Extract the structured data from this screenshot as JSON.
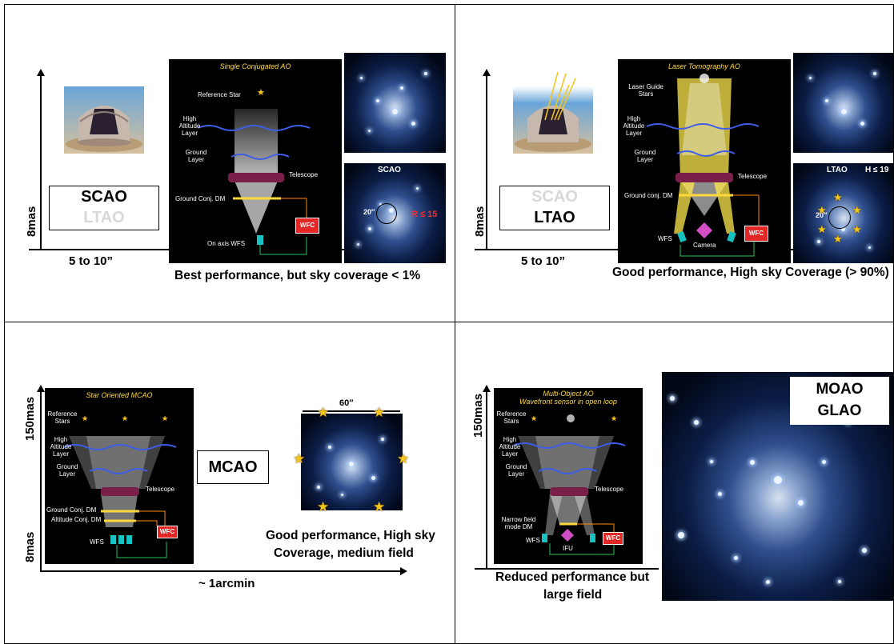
{
  "quadrants": {
    "scao": {
      "y_axis_label": "8mas",
      "x_axis_label": "5 to 10”",
      "mode_primary": "SCAO",
      "mode_secondary": "LTAO",
      "diagram": {
        "title": "Single Conjugated AO",
        "reference": "Reference Star",
        "high_layer": "High Altitude Layer",
        "ground_layer": "Ground Layer",
        "telescope": "Telescope",
        "dm": "Ground Conj. DM",
        "wfs": "On axis WFS",
        "wfc": "WFC"
      },
      "image_label": "SCAO",
      "field_size": "20″",
      "magnitude": "R ≤ 15",
      "caption": "Best performance, but sky coverage < 1%"
    },
    "ltao": {
      "y_axis_label": "8mas",
      "x_axis_label": "5 to 10”",
      "mode_primary": "SCAO",
      "mode_secondary": "LTAO",
      "diagram": {
        "title": "Laser Tomography AO",
        "reference": "Laser Guide Stars",
        "high_layer": "High Altitude Layer",
        "ground_layer": "Ground Layer",
        "telescope": "Telescope",
        "dm": "Ground conj. DM",
        "wfs": "WFS",
        "camera": "Camera",
        "wfc": "WFC"
      },
      "image_label": "LTAO",
      "field_size": "20″",
      "magnitude": "H ≤ 19",
      "caption": "Good performance, High sky Coverage (> 90%)"
    },
    "mcao": {
      "y_axis_top": "150mas",
      "y_axis_bottom": "8mas",
      "x_axis_label": "~ 1arcmin",
      "mode": "MCAO",
      "diagram": {
        "title": "Star Oriented MCAO",
        "reference": "Reference Stars",
        "high_layer": "High Altitude Layer",
        "ground_layer": "Ground Layer",
        "telescope": "Telescope",
        "dm1": "Ground Conj. DM",
        "dm2": "Altitude Conj. DM",
        "wfs": "WFS",
        "wfc": "WFC"
      },
      "field_size": "60″",
      "caption_line1": "Good performance, High sky",
      "caption_line2": "Coverage, medium field"
    },
    "moao": {
      "y_axis_label": "150mas",
      "mode_line1": "MOAO",
      "mode_line2": "GLAO",
      "diagram": {
        "title_line1": "Multi-Object AO",
        "title_line2": "Wavefront sensor in open loop",
        "reference": "Reference Stars",
        "high_layer": "High Altitude Layer",
        "ground_layer": "Ground Layer",
        "telescope": "Telescope",
        "dm": "Narrow field mode DM",
        "wfs": "WFS",
        "ifu": "IFU",
        "wfc": "WFC"
      },
      "caption_line1": "Reduced performance but",
      "caption_line2": "large field"
    }
  },
  "colors": {
    "border": "#000000",
    "star_yellow": "#f5c518",
    "wfc_red": "#e32626",
    "diagram_title": "#ffd93b",
    "laser_yellow": "#ffe94d",
    "turbulence_blue": "#3f5ee8"
  }
}
